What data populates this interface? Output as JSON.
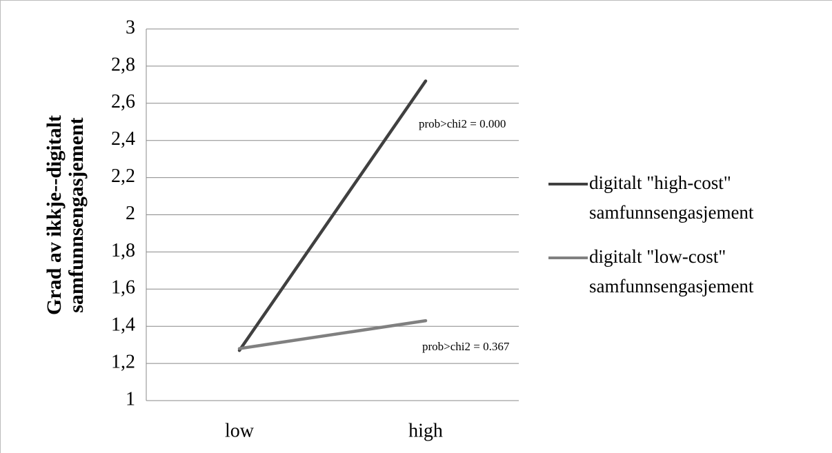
{
  "chart_data": {
    "type": "line",
    "ylabel": "Grad av ikkje--digitalt samfunnsengasjement",
    "categories": [
      "low",
      "high"
    ],
    "series": [
      {
        "name": "digitalt \"high-cost\" samfunnsengasjement",
        "color": "#404040",
        "values": [
          1.27,
          2.72
        ]
      },
      {
        "name": "digitalt \"low-cost\" samfunnsengasjement",
        "color": "#808080",
        "values": [
          1.28,
          1.43
        ]
      }
    ],
    "annotations": [
      "prob>chi2 = 0.000",
      "prob>chi2 = 0.367"
    ],
    "ylim": [
      1,
      3
    ],
    "yticks": [
      1,
      {
        "value": 1.2,
        "label": "1,2"
      },
      {
        "value": 1.4,
        "label": "1,4"
      },
      {
        "value": 1.6,
        "label": "1,6"
      },
      {
        "value": 1.8,
        "label": "1,8"
      },
      2,
      {
        "value": 2.2,
        "label": "2,2"
      },
      {
        "value": 2.4,
        "label": "2,4"
      },
      {
        "value": 2.6,
        "label": "2,6"
      },
      {
        "value": 2.8,
        "label": "2,8"
      },
      3
    ],
    "grid": true,
    "legend": "right"
  }
}
